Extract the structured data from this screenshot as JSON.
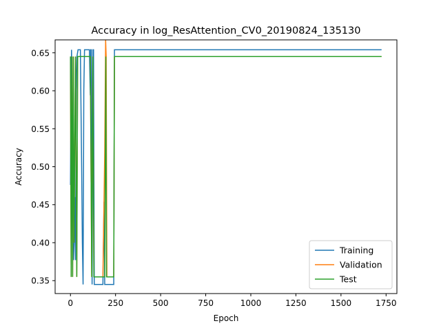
{
  "chart_data": {
    "type": "line",
    "title": "Accuracy in log_ResAttention_CV0_20190824_135130",
    "xlabel": "Epoch",
    "ylabel": "Accuracy",
    "xlim": [
      -85,
      1810
    ],
    "ylim": [
      0.333,
      0.667
    ],
    "xticks": [
      0,
      250,
      500,
      750,
      1000,
      1250,
      1500,
      1750
    ],
    "yticks": [
      0.35,
      0.4,
      0.45,
      0.5,
      0.55,
      0.6,
      0.65
    ],
    "ytick_labels": [
      "0.35",
      "0.40",
      "0.45",
      "0.50",
      "0.55",
      "0.60",
      "0.65"
    ],
    "grid": false,
    "legend_position": "lower-right",
    "series": [
      {
        "name": "Training",
        "color": "#1f77b4",
        "x": [
          0,
          3,
          6,
          8,
          10,
          12,
          14,
          17,
          20,
          24,
          28,
          32,
          36,
          42,
          48,
          55,
          62,
          66,
          70,
          74,
          78,
          85,
          95,
          105,
          110,
          112,
          116,
          120,
          125,
          128,
          132,
          138,
          150,
          165,
          180,
          186,
          190,
          196,
          200,
          215,
          230,
          240,
          244,
          250,
          300,
          500,
          1000,
          1500,
          1725
        ],
        "y": [
          0.476,
          0.6,
          0.654,
          0.6,
          0.52,
          0.45,
          0.4,
          0.377,
          0.4,
          0.46,
          0.377,
          0.6,
          0.645,
          0.654,
          0.654,
          0.654,
          0.5,
          0.4,
          0.345,
          0.6,
          0.654,
          0.654,
          0.654,
          0.654,
          0.594,
          0.654,
          0.654,
          0.345,
          0.654,
          0.654,
          0.345,
          0.345,
          0.345,
          0.345,
          0.345,
          0.454,
          0.345,
          0.345,
          0.345,
          0.345,
          0.345,
          0.345,
          0.654,
          0.654,
          0.654,
          0.654,
          0.654,
          0.654,
          0.654
        ]
      },
      {
        "name": "Validation",
        "color": "#ff7f0e",
        "x": [
          0,
          4,
          8,
          12,
          16,
          20,
          28,
          35,
          40,
          48,
          55,
          62,
          70,
          80,
          90,
          100,
          110,
          118,
          124,
          130,
          140,
          160,
          180,
          190,
          195,
          198,
          202,
          210,
          230,
          240,
          244,
          250,
          500,
          1000,
          1500,
          1725
        ],
        "y": [
          0.645,
          0.355,
          0.645,
          0.355,
          0.645,
          0.4,
          0.645,
          0.355,
          0.645,
          0.645,
          0.645,
          0.645,
          0.645,
          0.645,
          0.645,
          0.645,
          0.645,
          0.355,
          0.645,
          0.355,
          0.355,
          0.355,
          0.355,
          0.52,
          0.667,
          0.645,
          0.355,
          0.355,
          0.355,
          0.355,
          0.645,
          0.645,
          0.645,
          0.645,
          0.645,
          0.645
        ]
      },
      {
        "name": "Test",
        "color": "#2ca02c",
        "x": [
          0,
          4,
          8,
          12,
          16,
          20,
          28,
          35,
          40,
          48,
          55,
          62,
          70,
          80,
          90,
          100,
          110,
          118,
          124,
          130,
          140,
          160,
          180,
          190,
          196,
          200,
          210,
          230,
          240,
          244,
          250,
          500,
          1000,
          1500,
          1725
        ],
        "y": [
          0.645,
          0.355,
          0.645,
          0.355,
          0.645,
          0.4,
          0.645,
          0.355,
          0.645,
          0.645,
          0.645,
          0.645,
          0.645,
          0.645,
          0.645,
          0.645,
          0.645,
          0.355,
          0.645,
          0.355,
          0.355,
          0.355,
          0.355,
          0.355,
          0.645,
          0.355,
          0.355,
          0.355,
          0.355,
          0.645,
          0.645,
          0.645,
          0.645,
          0.645,
          0.645
        ]
      }
    ]
  }
}
